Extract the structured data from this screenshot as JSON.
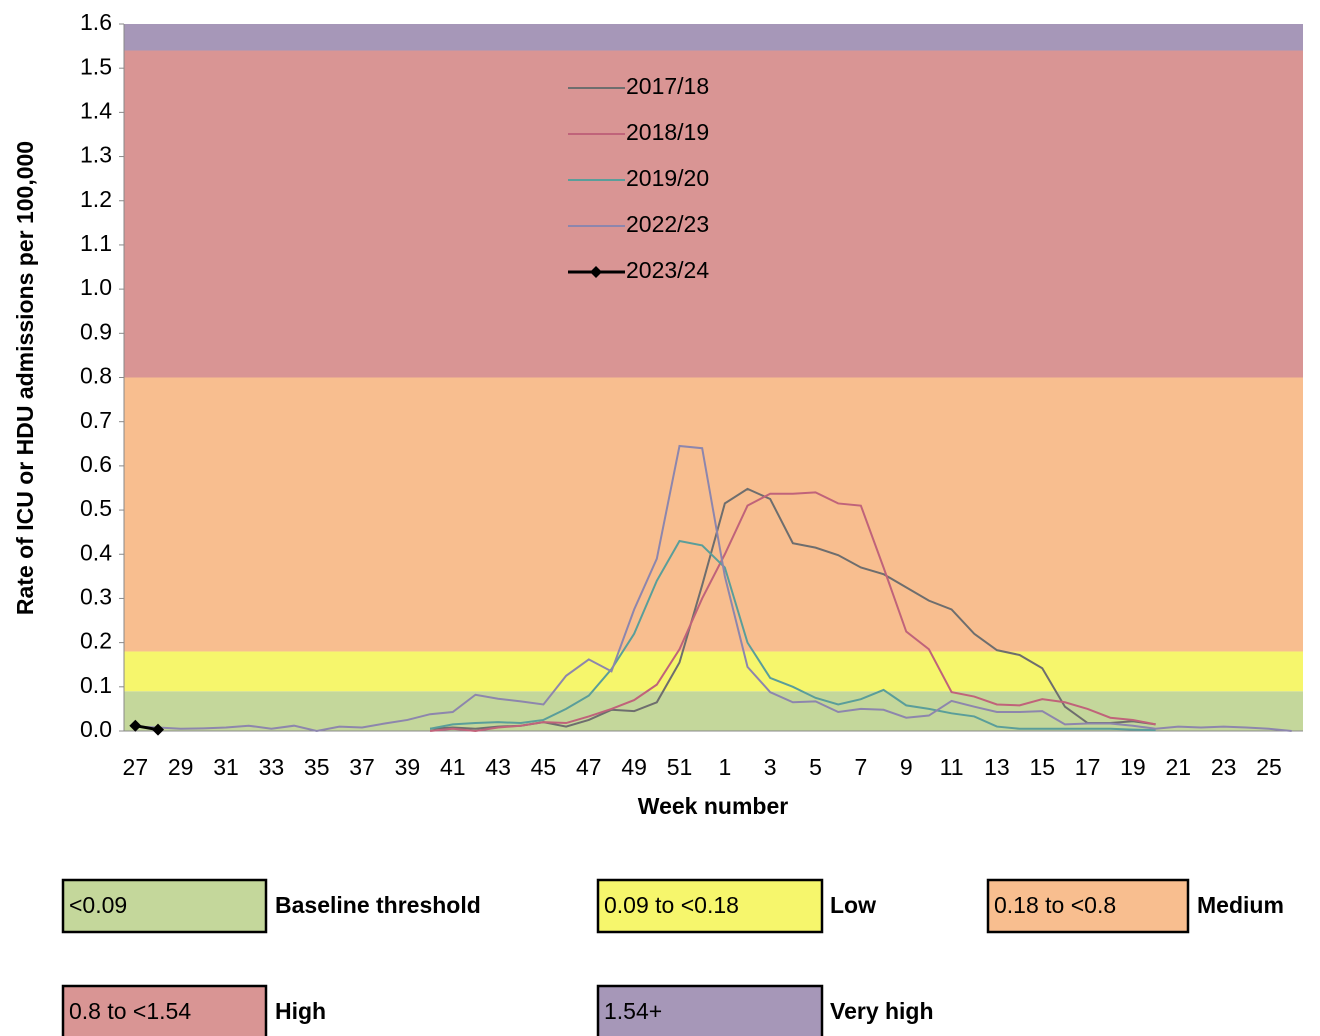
{
  "chart_data": {
    "type": "line",
    "x_label": "Week number",
    "y_label": "Rate of ICU or HDU admissions per 100,000",
    "categories": [
      "27",
      null,
      "29",
      null,
      "31",
      null,
      "33",
      null,
      "35",
      null,
      "37",
      null,
      "39",
      null,
      "41",
      null,
      "43",
      null,
      "45",
      null,
      "47",
      null,
      "49",
      null,
      "51",
      null,
      "1",
      null,
      "3",
      null,
      "5",
      null,
      "7",
      null,
      "9",
      null,
      "11",
      null,
      "13",
      null,
      "15",
      null,
      "17",
      null,
      "19",
      null,
      "21",
      null,
      "23",
      null,
      "25",
      null
    ],
    "ylim": [
      0,
      1.6
    ],
    "yticks": [
      {
        "value": 0,
        "label": "0.0"
      },
      0.1,
      0.2,
      0.3,
      0.4,
      0.5,
      0.6,
      0.7,
      0.8,
      0.9,
      {
        "value": 1,
        "label": "1.0"
      },
      1.1,
      1.2,
      1.3,
      1.4,
      1.5,
      1.6
    ],
    "bands": [
      {
        "range_label": "<0.09",
        "name": "Baseline threshold",
        "max": 0.09,
        "color": "#c4d79b"
      },
      {
        "range_label": "0.09 to <0.18",
        "name": "Low",
        "min": 0.09,
        "max": 0.18,
        "color": "#f6f66c"
      },
      {
        "range_label": "0.18 to <0.8",
        "name": "Medium",
        "min": 0.18,
        "max": 0.8,
        "color": "#f8be8f"
      },
      {
        "range_label": "0.8 to <1.54",
        "name": "High",
        "min": 0.8,
        "max": 1.54,
        "color": "#d99594"
      },
      {
        "range_label": "1.54+",
        "name": "Very high",
        "min": 1.54,
        "color": "#a697b8"
      }
    ],
    "series": [
      {
        "name": "2017/18",
        "color": "#6e6e6e",
        "values": [
          null,
          null,
          null,
          null,
          null,
          null,
          null,
          null,
          null,
          null,
          null,
          null,
          null,
          0.005,
          0.008,
          0.005,
          0.01,
          0.012,
          0.02,
          0.01,
          0.025,
          0.048,
          0.045,
          0.065,
          0.155,
          0.33,
          0.515,
          0.548,
          0.525,
          0.425,
          0.415,
          0.398,
          0.37,
          0.355,
          0.325,
          0.295,
          0.275,
          0.22,
          0.183,
          0.172,
          0.142,
          0.055,
          0.018,
          0.018,
          0.022,
          0.015,
          null,
          null,
          null,
          null,
          null,
          null
        ]
      },
      {
        "name": "2018/19",
        "color": "#c0637a",
        "values": [
          null,
          null,
          null,
          null,
          null,
          null,
          null,
          null,
          null,
          null,
          null,
          null,
          null,
          0,
          0.005,
          0,
          0.008,
          0.012,
          0.02,
          0.018,
          0.033,
          0.05,
          0.07,
          0.105,
          0.185,
          0.3,
          0.4,
          0.51,
          0.537,
          0.537,
          0.54,
          0.515,
          0.51,
          0.37,
          0.225,
          0.185,
          0.088,
          0.078,
          0.06,
          0.058,
          0.072,
          0.065,
          0.05,
          0.03,
          0.025,
          0.015,
          null,
          null,
          null,
          null,
          null,
          null
        ]
      },
      {
        "name": "2019/20",
        "color": "#5a9e9a",
        "values": [
          null,
          null,
          null,
          null,
          null,
          null,
          null,
          null,
          null,
          null,
          null,
          null,
          null,
          0.005,
          0.015,
          0.018,
          0.02,
          0.018,
          0.025,
          0.05,
          0.08,
          0.14,
          0.22,
          0.34,
          0.43,
          0.42,
          0.37,
          0.2,
          0.12,
          0.1,
          0.075,
          0.06,
          0.072,
          0.093,
          0.058,
          0.05,
          0.04,
          0.033,
          0.01,
          0.005,
          0.005,
          0.005,
          0.005,
          0.005,
          0.003,
          0.002,
          null,
          null,
          null,
          null,
          null,
          null
        ]
      },
      {
        "name": "2022/23",
        "color": "#8d86ad",
        "values": [
          0.01,
          0.008,
          0.005,
          0.006,
          0.008,
          0.012,
          0.005,
          0.012,
          0,
          0.01,
          0.008,
          0.017,
          0.025,
          0.038,
          0.043,
          0.082,
          0.073,
          0.067,
          0.06,
          0.125,
          0.162,
          0.135,
          0.275,
          0.39,
          0.645,
          0.64,
          0.35,
          0.145,
          0.088,
          0.065,
          0.067,
          0.043,
          0.05,
          0.048,
          0.03,
          0.035,
          0.068,
          0.055,
          0.043,
          0.043,
          0.045,
          0.015,
          0.017,
          0.017,
          0.012,
          0.005,
          0.01,
          0.008,
          0.01,
          0.008,
          0.005,
          0
        ]
      },
      {
        "name": "2023/24",
        "color": "#000000",
        "marker": "diamond",
        "values": [
          0.012,
          0.003,
          null,
          null,
          null,
          null,
          null,
          null,
          null,
          null,
          null,
          null,
          null,
          null,
          null,
          null,
          null,
          null,
          null,
          null,
          null,
          null,
          null,
          null,
          null,
          null,
          null,
          null,
          null,
          null,
          null,
          null,
          null,
          null,
          null,
          null,
          null,
          null,
          null,
          null,
          null,
          null,
          null,
          null,
          null,
          null,
          null,
          null,
          null,
          null,
          null,
          null
        ]
      }
    ]
  }
}
